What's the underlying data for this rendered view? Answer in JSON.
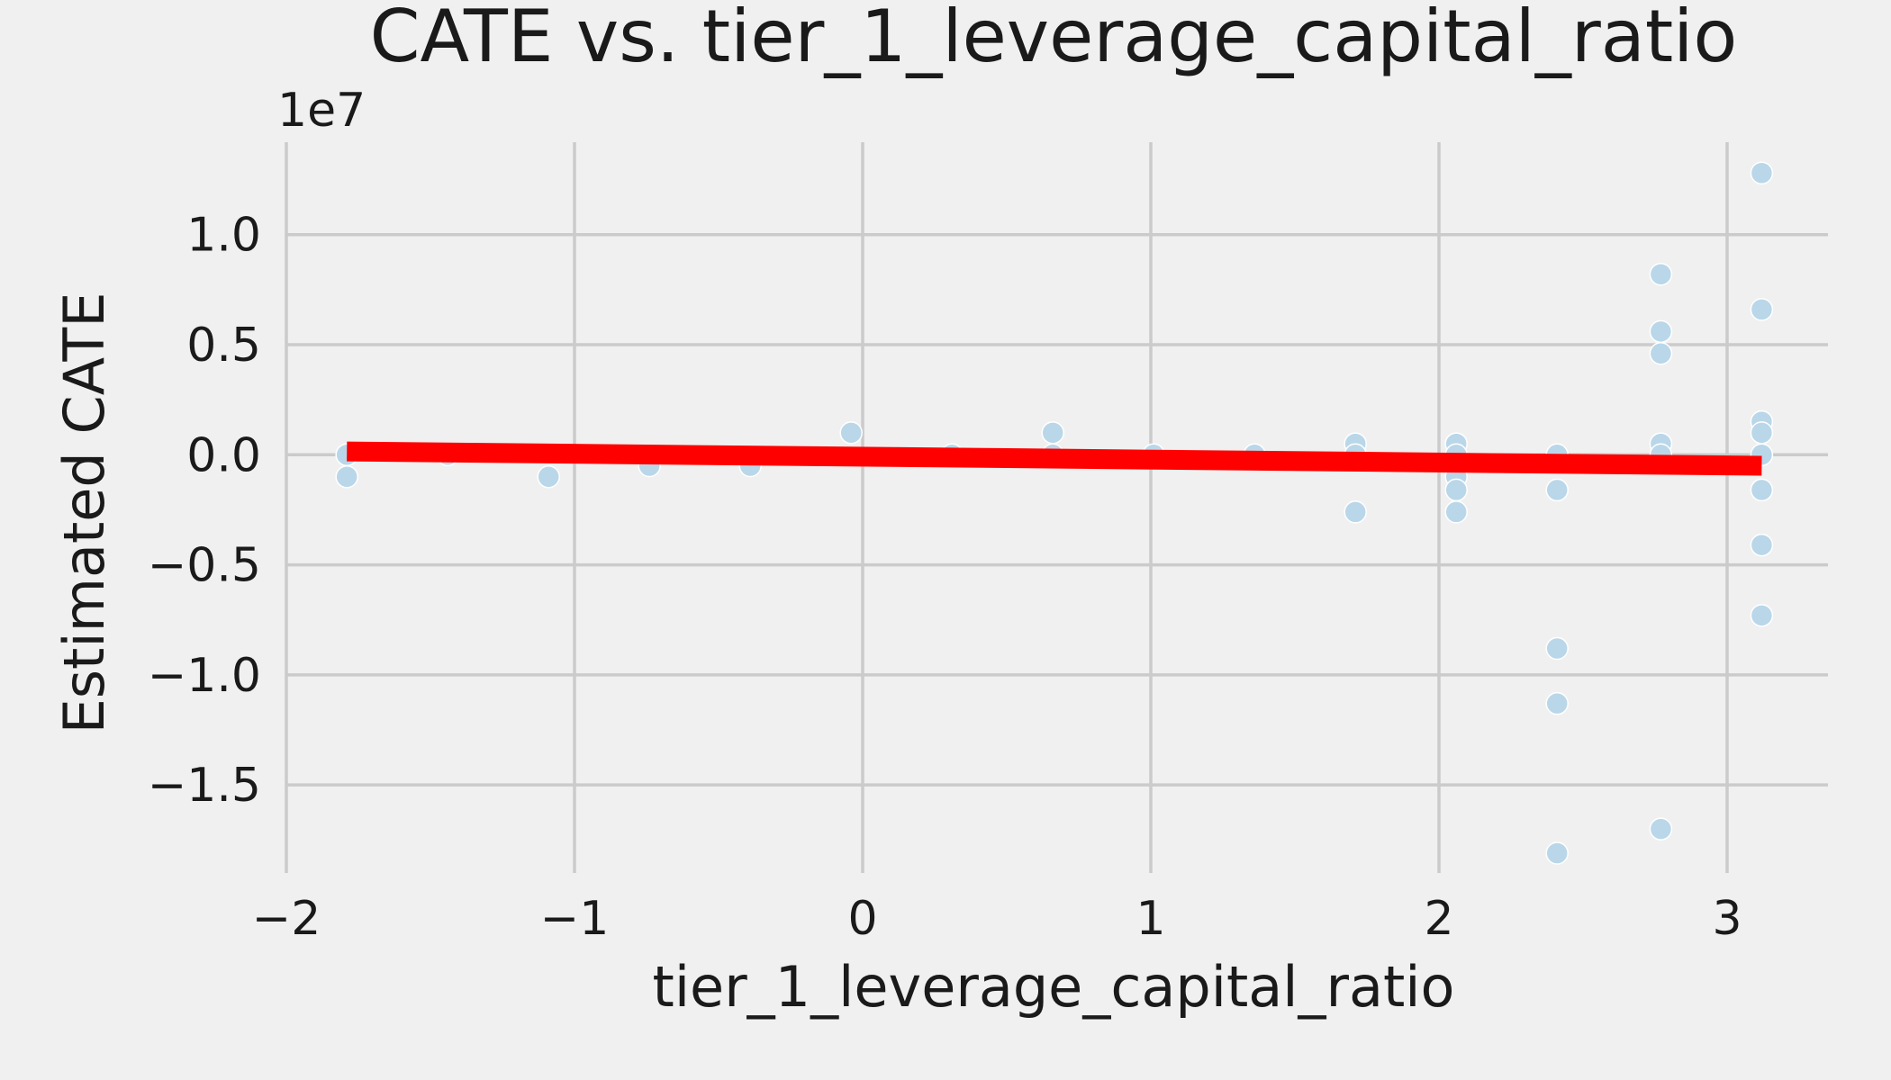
{
  "chart_data": {
    "type": "scatter",
    "title": "CATE vs. tier_1_leverage_capital_ratio",
    "xlabel": "tier_1_leverage_capital_ratio",
    "ylabel": "Estimated CATE",
    "y_offset_text": "1e7",
    "xlim": [
      -2.0,
      3.35
    ],
    "ylim": [
      -19000000.0,
      14200000.0
    ],
    "x_ticks": [
      -2,
      -1,
      0,
      1,
      2,
      3
    ],
    "x_tick_labels": [
      "−2",
      "−1",
      "0",
      "1",
      "2",
      "3"
    ],
    "y_ticks": [
      10000000.0,
      5000000.0,
      0,
      -5000000.0,
      -10000000.0,
      -15000000.0
    ],
    "y_tick_labels": [
      "1.0",
      "0.5",
      "0.0",
      "−0.5",
      "−1.0",
      "−1.5"
    ],
    "grid": true,
    "colors": {
      "points": "#b9d7e9",
      "trend": "#ff0000",
      "grid": "#cbcbcb",
      "background": "#f0f0f0"
    },
    "series": [
      {
        "kind": "scatter",
        "points": [
          [
            -1.79,
            0
          ],
          [
            -1.79,
            -1000000.0
          ],
          [
            -1.44,
            0
          ],
          [
            -1.09,
            -1000000.0
          ],
          [
            -0.74,
            -500000.0
          ],
          [
            -0.39,
            -500000.0
          ],
          [
            -0.04,
            1000000.0
          ],
          [
            0.31,
            0
          ],
          [
            0.66,
            1000000.0
          ],
          [
            0.66,
            0
          ],
          [
            1.01,
            0
          ],
          [
            1.36,
            0
          ],
          [
            1.71,
            500000.0
          ],
          [
            1.71,
            0
          ],
          [
            1.71,
            -2600000.0
          ],
          [
            2.06,
            500000.0
          ],
          [
            2.06,
            0
          ],
          [
            2.06,
            -1000000.0
          ],
          [
            2.06,
            -1600000.0
          ],
          [
            2.06,
            -2600000.0
          ],
          [
            2.41,
            0
          ],
          [
            2.41,
            -1600000.0
          ],
          [
            2.41,
            -8800000.0
          ],
          [
            2.41,
            -11300000.0
          ],
          [
            2.41,
            -18100000.0
          ],
          [
            2.77,
            8200000.0
          ],
          [
            2.77,
            5600000.0
          ],
          [
            2.77,
            4600000.0
          ],
          [
            2.77,
            500000.0
          ],
          [
            2.77,
            0
          ],
          [
            2.77,
            -17000000.0
          ],
          [
            3.12,
            12800000.0
          ],
          [
            3.12,
            6600000.0
          ],
          [
            3.12,
            1500000.0
          ],
          [
            3.12,
            1000000.0
          ],
          [
            3.12,
            0
          ],
          [
            3.12,
            -1600000.0
          ],
          [
            3.12,
            -4100000.0
          ],
          [
            3.12,
            -7300000.0
          ]
        ]
      },
      {
        "kind": "line",
        "points": [
          [
            -1.79,
            150000.0
          ],
          [
            3.12,
            -500000.0
          ]
        ]
      }
    ]
  }
}
